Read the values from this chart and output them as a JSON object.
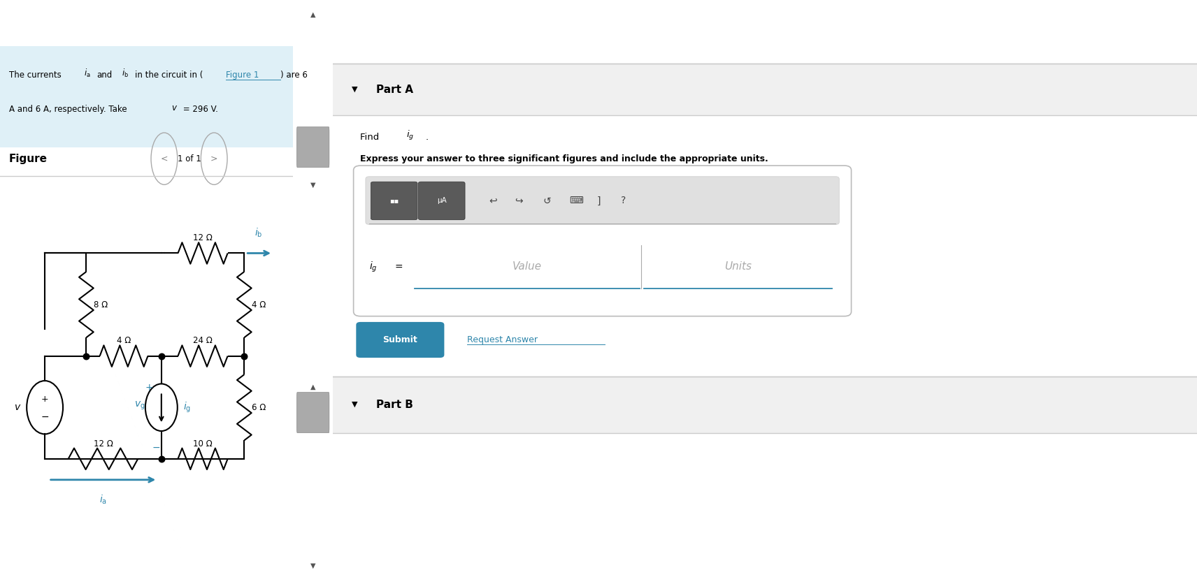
{
  "bg_color": "#ffffff",
  "problem_text_bg": "#dff0f7",
  "teal_color": "#2e86ab",
  "submit_bg": "#2e86ab",
  "divider_color": "#cccccc",
  "gray_bg": "#f0f0f0",
  "scrollbar_bg": "#d0d0d0",
  "scrollbar_thumb": "#aaaaaa",
  "right_panel_bg": "#f7f7f7",
  "resistors_labels": [
    "8 Ω",
    "4 Ω",
    "12 Ω",
    "24 Ω",
    "10 Ω",
    "12 Ω",
    "4 Ω",
    "6 Ω"
  ],
  "part_a": "Part A",
  "part_b": "Part B",
  "find_text": "Find",
  "express_text": "Express your answer to three significant figures and include the appropriate units.",
  "value_text": "Value",
  "units_text": "Units",
  "submit_text": "Submit",
  "request_text": "Request Answer",
  "figure_text": "Figure",
  "nav_text": "1 of 1",
  "prob_line1a": "The currents ",
  "prob_line1b": " in the circuit in (",
  "prob_line1c": "Figure 1",
  "prob_line1d": ") are 6",
  "prob_line2": "A and 6 A, respectively. Take ",
  "prob_line2b": " = 296 V."
}
